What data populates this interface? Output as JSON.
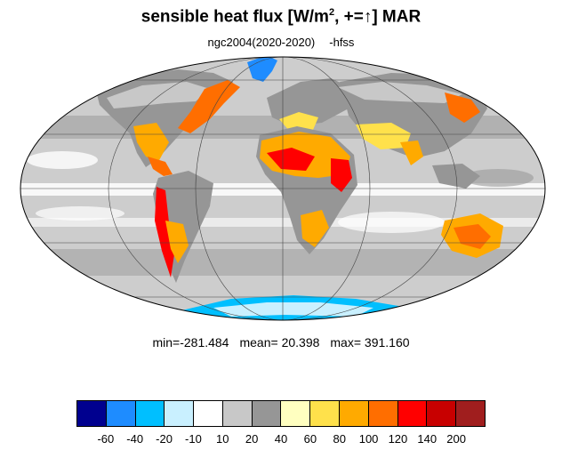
{
  "title": {
    "prefix": "sensible heat flux [W/m",
    "sup": "2",
    "suffix": ", +=",
    "arrow": "↑",
    "end": "]  MAR"
  },
  "subtitle": {
    "case": "ngc2004(2020-2020)",
    "var": "-hfss"
  },
  "stats": {
    "min": "min=-281.484",
    "mean": "mean=  20.398",
    "max": "max= 391.160"
  },
  "colorbar": {
    "colors": [
      "#00008f",
      "#1e8cff",
      "#00bfff",
      "#c9f0ff",
      "#ffffff",
      "#c8c8c8",
      "#969696",
      "#ffffc0",
      "#ffe14b",
      "#ffaa00",
      "#ff6e00",
      "#ff0000",
      "#c80000",
      "#a01e1e"
    ],
    "labels": [
      "-60",
      "-40",
      "-20",
      "-10",
      "10",
      "20",
      "40",
      "60",
      "80",
      "100",
      "120",
      "140",
      "200"
    ]
  }
}
